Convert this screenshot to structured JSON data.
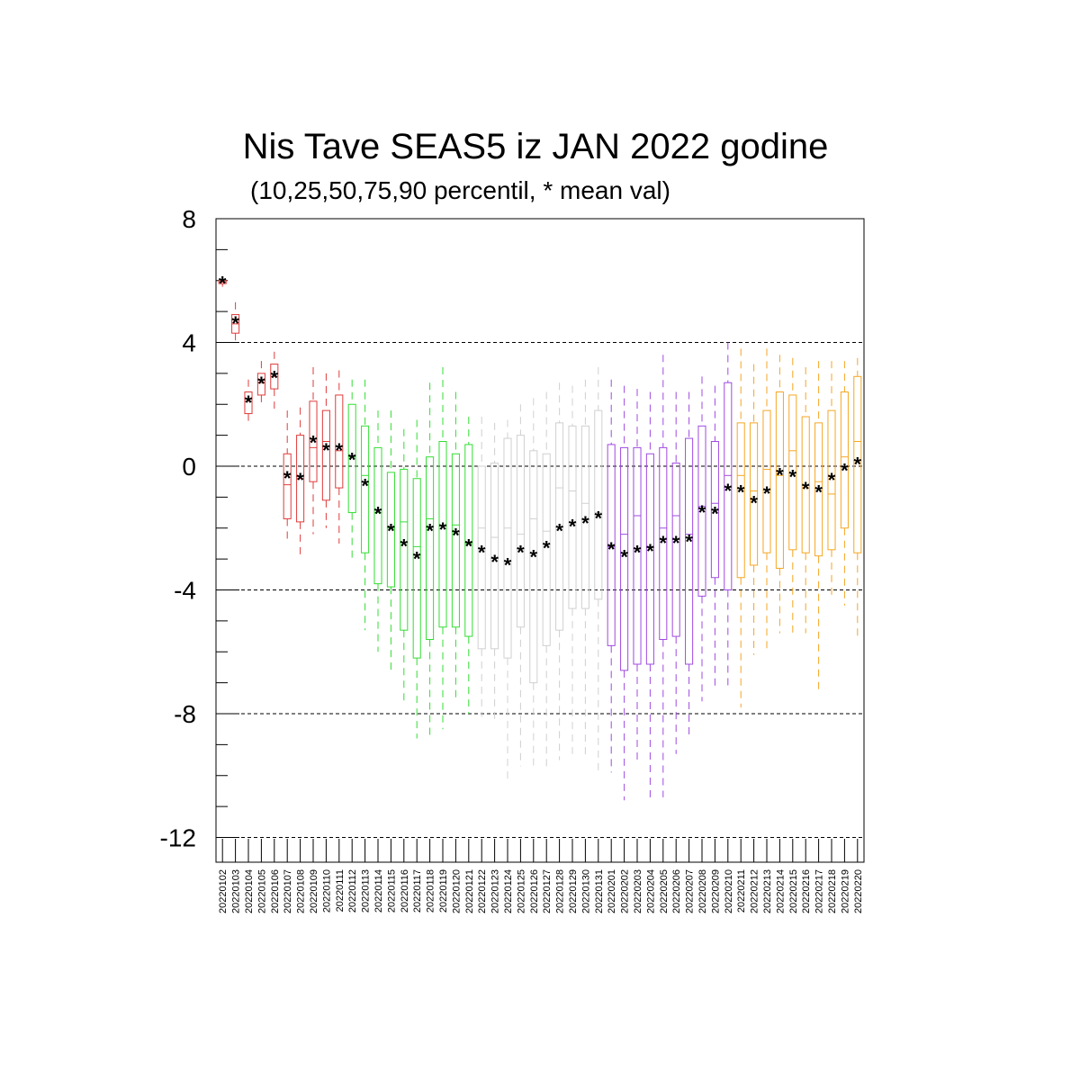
{
  "chart_data": {
    "type": "box",
    "title": "Nis Tave SEAS5 iz JAN 2022 godine",
    "subtitle": "(10,25,50,75,90 percentil, * mean val)",
    "xlabel": "",
    "ylabel": "",
    "ylim": [
      -12.8,
      8
    ],
    "ytick_values": [
      8,
      4,
      0,
      -4,
      -8,
      -12
    ],
    "ytick_labels": [
      "8",
      "4",
      "0",
      "-4",
      "-8",
      "-12"
    ],
    "grid": "dashed horizontal lines at major ticks",
    "categories": [
      "20220102",
      "20220103",
      "20220104",
      "20220105",
      "20220106",
      "20220107",
      "20220108",
      "20220109",
      "20220110",
      "20220111",
      "20220112",
      "20220113",
      "20220114",
      "20220115",
      "20220116",
      "20220117",
      "20220118",
      "20220119",
      "20220120",
      "20220121",
      "20220122",
      "20220123",
      "20220124",
      "20220125",
      "20220126",
      "20220127",
      "20220128",
      "20220129",
      "20220130",
      "20220131",
      "20220201",
      "20220202",
      "20220203",
      "20220204",
      "20220205",
      "20220206",
      "20220207",
      "20220208",
      "20220209",
      "20220210",
      "20220211",
      "20220212",
      "20220213",
      "20220214",
      "20220215",
      "20220216",
      "20220217",
      "20220218",
      "20220219",
      "20220220"
    ],
    "colors": [
      "#e03b3b",
      "#e03b3b",
      "#e03b3b",
      "#e03b3b",
      "#e03b3b",
      "#e03b3b",
      "#e03b3b",
      "#e03b3b",
      "#e03b3b",
      "#e03b3b",
      "#33dd33",
      "#33dd33",
      "#33dd33",
      "#33dd33",
      "#33dd33",
      "#33dd33",
      "#33dd33",
      "#33dd33",
      "#33dd33",
      "#33dd33",
      "#d0d0d0",
      "#d0d0d0",
      "#d0d0d0",
      "#d0d0d0",
      "#d0d0d0",
      "#d0d0d0",
      "#d0d0d0",
      "#d0d0d0",
      "#d0d0d0",
      "#d0d0d0",
      "#a04ae0",
      "#a04ae0",
      "#a04ae0",
      "#a04ae0",
      "#a04ae0",
      "#a04ae0",
      "#a04ae0",
      "#a04ae0",
      "#a04ae0",
      "#a04ae0",
      "#f5a623",
      "#f5a623",
      "#f5a623",
      "#f5a623",
      "#f5a623",
      "#f5a623",
      "#f5a623",
      "#f5a623",
      "#f5a623",
      "#f5a623"
    ],
    "mean_color": "#000066",
    "boxes": [
      {
        "p10": 5.8,
        "p25": 5.9,
        "p50": 5.95,
        "p75": 6.0,
        "p90": 6.1,
        "mean": 5.95
      },
      {
        "p10": 4.0,
        "p25": 4.3,
        "p50": 4.6,
        "p75": 4.9,
        "p90": 5.3,
        "mean": 4.65
      },
      {
        "p10": 1.4,
        "p25": 1.7,
        "p50": 2.1,
        "p75": 2.4,
        "p90": 2.8,
        "mean": 2.1
      },
      {
        "p10": 1.9,
        "p25": 2.3,
        "p50": 2.7,
        "p75": 3.0,
        "p90": 3.4,
        "mean": 2.7
      },
      {
        "p10": 1.8,
        "p25": 2.5,
        "p50": 2.9,
        "p75": 3.3,
        "p90": 3.7,
        "mean": 2.9
      },
      {
        "p10": -2.4,
        "p25": -1.7,
        "p50": -0.6,
        "p75": 0.4,
        "p90": 1.8,
        "mean": -0.35
      },
      {
        "p10": -2.9,
        "p25": -1.8,
        "p50": -0.4,
        "p75": 1.0,
        "p90": 1.9,
        "mean": -0.4
      },
      {
        "p10": -2.2,
        "p25": -0.5,
        "p50": 0.6,
        "p75": 2.1,
        "p90": 3.2,
        "mean": 0.8
      },
      {
        "p10": -2.0,
        "p25": -1.1,
        "p50": 0.8,
        "p75": 1.8,
        "p90": 3.0,
        "mean": 0.55
      },
      {
        "p10": -2.5,
        "p25": -0.7,
        "p50": 0.5,
        "p75": 2.3,
        "p90": 3.1,
        "mean": 0.55
      },
      {
        "p10": -3.1,
        "p25": -1.5,
        "p50": 0.3,
        "p75": 2.0,
        "p90": 2.8,
        "mean": 0.25
      },
      {
        "p10": -5.3,
        "p25": -2.8,
        "p50": -0.3,
        "p75": 1.3,
        "p90": 2.8,
        "mean": -0.6
      },
      {
        "p10": -6.0,
        "p25": -3.8,
        "p50": -1.5,
        "p75": 0.6,
        "p90": 1.8,
        "mean": -1.5
      },
      {
        "p10": -6.6,
        "p25": -3.9,
        "p50": -2.0,
        "p75": -0.2,
        "p90": 1.8,
        "mean": -2.05
      },
      {
        "p10": -7.7,
        "p25": -5.3,
        "p50": -1.8,
        "p75": -0.1,
        "p90": 1.2,
        "mean": -2.55
      },
      {
        "p10": -8.8,
        "p25": -6.2,
        "p50": -2.6,
        "p75": -0.4,
        "p90": 1.5,
        "mean": -2.95
      },
      {
        "p10": -8.7,
        "p25": -5.6,
        "p50": -1.7,
        "p75": 0.3,
        "p90": 2.7,
        "mean": -2.05
      },
      {
        "p10": -8.5,
        "p25": -5.2,
        "p50": -1.9,
        "p75": 0.8,
        "p90": 3.2,
        "mean": -2.0
      },
      {
        "p10": -7.6,
        "p25": -5.2,
        "p50": -1.9,
        "p75": 0.4,
        "p90": 2.4,
        "mean": -2.2
      },
      {
        "p10": -8.0,
        "p25": -5.5,
        "p50": -2.5,
        "p75": 0.7,
        "p90": 1.6,
        "mean": -2.55
      },
      {
        "p10": -8.1,
        "p25": -5.9,
        "p50": -2.0,
        "p75": 0.0,
        "p90": 1.6,
        "mean": -2.75
      },
      {
        "p10": -8.3,
        "p25": -5.9,
        "p50": -2.3,
        "p75": 0.1,
        "p90": 1.4,
        "mean": -3.05
      },
      {
        "p10": -10.1,
        "p25": -6.2,
        "p50": -2.0,
        "p75": 0.9,
        "p90": 1.5,
        "mean": -3.15
      },
      {
        "p10": -9.7,
        "p25": -5.2,
        "p50": -2.2,
        "p75": 1.0,
        "p90": 2.0,
        "mean": -2.75
      },
      {
        "p10": -9.8,
        "p25": -7.0,
        "p50": -1.7,
        "p75": 0.5,
        "p90": 2.2,
        "mean": -2.9
      },
      {
        "p10": -9.7,
        "p25": -5.8,
        "p50": -2.1,
        "p75": 0.4,
        "p90": 2.4,
        "mean": -2.6
      },
      {
        "p10": -9.5,
        "p25": -5.3,
        "p50": -0.7,
        "p75": 1.4,
        "p90": 2.7,
        "mean": -2.05
      },
      {
        "p10": -9.3,
        "p25": -4.6,
        "p50": -0.8,
        "p75": 1.3,
        "p90": 2.6,
        "mean": -1.9
      },
      {
        "p10": -9.4,
        "p25": -4.6,
        "p50": -1.2,
        "p75": 1.3,
        "p90": 2.8,
        "mean": -1.8
      },
      {
        "p10": -10.0,
        "p25": -4.3,
        "p50": -1.5,
        "p75": 1.8,
        "p90": 3.2,
        "mean": -1.65
      },
      {
        "p10": -9.9,
        "p25": -5.8,
        "p50": -2.6,
        "p75": 0.7,
        "p90": 2.8,
        "mean": -2.65
      },
      {
        "p10": -10.8,
        "p25": -6.6,
        "p50": -2.2,
        "p75": 0.6,
        "p90": 2.6,
        "mean": -2.9
      },
      {
        "p10": -9.6,
        "p25": -6.4,
        "p50": -1.6,
        "p75": 0.6,
        "p90": 2.5,
        "mean": -2.75
      },
      {
        "p10": -10.7,
        "p25": -6.4,
        "p50": -2.6,
        "p75": 0.4,
        "p90": 2.4,
        "mean": -2.7
      },
      {
        "p10": -10.7,
        "p25": -5.6,
        "p50": -2.0,
        "p75": 0.6,
        "p90": 3.6,
        "mean": -2.45
      },
      {
        "p10": -9.3,
        "p25": -5.5,
        "p50": -1.6,
        "p75": 0.1,
        "p90": 2.4,
        "mean": -2.45
      },
      {
        "p10": -8.8,
        "p25": -6.4,
        "p50": -2.2,
        "p75": 0.9,
        "p90": 2.4,
        "mean": -2.4
      },
      {
        "p10": -7.6,
        "p25": -4.2,
        "p50": -1.3,
        "p75": 1.3,
        "p90": 2.9,
        "mean": -1.45
      },
      {
        "p10": -7.2,
        "p25": -3.6,
        "p50": -1.2,
        "p75": 0.8,
        "p90": 2.6,
        "mean": -1.5
      },
      {
        "p10": -7.2,
        "p25": -4.0,
        "p50": -0.3,
        "p75": 2.7,
        "p90": 4.0,
        "mean": -0.75
      },
      {
        "p10": -7.8,
        "p25": -3.6,
        "p50": -0.3,
        "p75": 1.4,
        "p90": 3.8,
        "mean": -0.8
      },
      {
        "p10": -6.1,
        "p25": -3.2,
        "p50": -0.8,
        "p75": 1.4,
        "p90": 3.3,
        "mean": -1.15
      },
      {
        "p10": -5.9,
        "p25": -2.8,
        "p50": -0.1,
        "p75": 1.8,
        "p90": 3.8,
        "mean": -0.85
      },
      {
        "p10": -5.4,
        "p25": -3.3,
        "p50": -0.3,
        "p75": 2.4,
        "p90": 3.6,
        "mean": -0.25
      },
      {
        "p10": -5.5,
        "p25": -2.7,
        "p50": 0.5,
        "p75": 2.3,
        "p90": 3.5,
        "mean": -0.3
      },
      {
        "p10": -5.4,
        "p25": -2.8,
        "p50": -0.7,
        "p75": 1.6,
        "p90": 3.2,
        "mean": -0.7
      },
      {
        "p10": -7.3,
        "p25": -2.9,
        "p50": -0.5,
        "p75": 1.4,
        "p90": 3.4,
        "mean": -0.8
      },
      {
        "p10": -4.2,
        "p25": -2.7,
        "p50": -0.9,
        "p75": 1.8,
        "p90": 3.4,
        "mean": -0.4
      },
      {
        "p10": -4.5,
        "p25": -2.0,
        "p50": 0.3,
        "p75": 2.4,
        "p90": 3.4,
        "mean": -0.1
      },
      {
        "p10": -5.6,
        "p25": -2.8,
        "p50": 0.8,
        "p75": 2.9,
        "p90": 3.5,
        "mean": 0.1
      }
    ]
  }
}
